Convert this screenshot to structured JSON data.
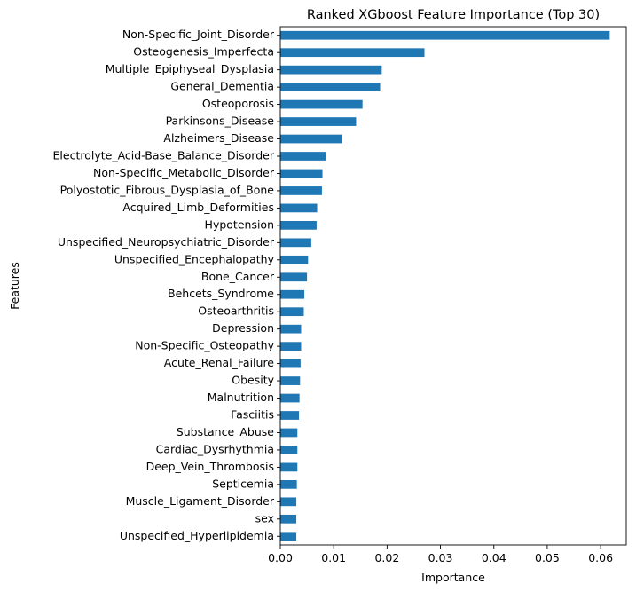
{
  "chart_data": {
    "type": "bar",
    "orientation": "horizontal",
    "title": "Ranked XGboost Feature Importance (Top 30)",
    "xlabel": "Importance",
    "ylabel": "Features",
    "xlim": [
      0,
      0.0648
    ],
    "xticks": [
      "0.00",
      "0.01",
      "0.02",
      "0.03",
      "0.04",
      "0.05",
      "0.06"
    ],
    "bar_color": "#1f77b4",
    "grid": false,
    "legend": "none",
    "categories": [
      "Non-Specific_Joint_Disorder",
      "Osteogenesis_Imperfecta",
      "Multiple_Epiphyseal_Dysplasia",
      "General_Dementia",
      "Osteoporosis",
      "Parkinsons_Disease",
      "Alzheimers_Disease",
      "Electrolyte_Acid-Base_Balance_Disorder",
      "Non-Specific_Metabolic_Disorder",
      "Polyostotic_Fibrous_Dysplasia_of_Bone",
      "Acquired_Limb_Deformities",
      "Hypotension",
      "Unspecified_Neuropsychiatric_Disorder",
      "Unspecified_Encephalopathy",
      "Bone_Cancer",
      "Behcets_Syndrome",
      "Osteoarthritis",
      "Depression",
      "Non-Specific_Osteopathy",
      "Acute_Renal_Failure",
      "Obesity",
      "Malnutrition",
      "Fasciitis",
      "Substance_Abuse",
      "Cardiac_Dysrhythmia",
      "Deep_Vein_Thrombosis",
      "Septicemia",
      "Muscle_Ligament_Disorder",
      "sex",
      "Unspecified_Hyperlipidemia"
    ],
    "values": [
      0.0617,
      0.027,
      0.019,
      0.0187,
      0.0154,
      0.0142,
      0.0116,
      0.0085,
      0.0079,
      0.0078,
      0.0069,
      0.0068,
      0.0058,
      0.0052,
      0.005,
      0.0045,
      0.0044,
      0.0039,
      0.0039,
      0.0038,
      0.0037,
      0.0036,
      0.0035,
      0.0032,
      0.0032,
      0.0032,
      0.0031,
      0.003,
      0.003,
      0.003
    ]
  }
}
